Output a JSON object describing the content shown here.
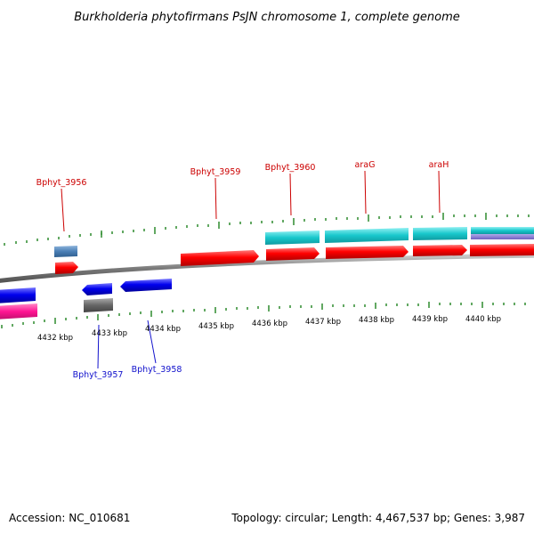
{
  "title": "Burkholderia phytofirmans PsJN chromosome 1, complete genome",
  "footer": {
    "accession": "Accession: NC_010681",
    "summary": "Topology: circular; Length: 4,467,537 bp; Genes: 3,987"
  },
  "ticks": [
    "4432 kbp",
    "4433 kbp",
    "4434 kbp",
    "4435 kbp",
    "4436 kbp",
    "4437 kbp",
    "4438 kbp",
    "4439 kbp",
    "4440 kbp"
  ],
  "gene_labels": {
    "bphyt_3956": "Bphyt_3956",
    "bphyt_3957": "Bphyt_3957",
    "bphyt_3958": "Bphyt_3958",
    "bphyt_3959": "Bphyt_3959",
    "bphyt_3960": "Bphyt_3960",
    "arag": "araG",
    "arah": "araH"
  },
  "colors": {
    "forward_gene": "#ff0000",
    "reverse_gene": "#0000ee",
    "cyan_feature": "#18c8cc",
    "steelblue_feature": "#4a7fb5",
    "gray_feature": "#666666",
    "magenta_feature": "#ff1493",
    "backbone": "#888888",
    "tick": "#2e8b2e"
  }
}
